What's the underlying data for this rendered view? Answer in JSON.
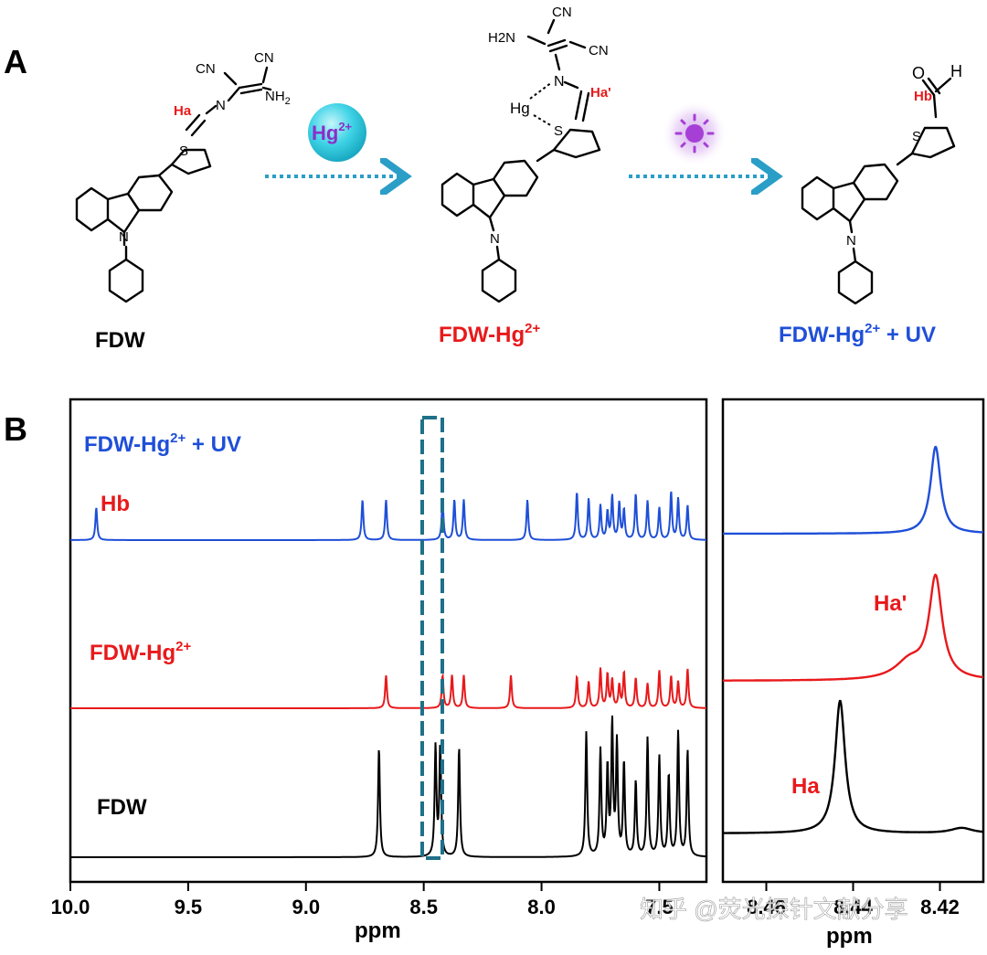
{
  "panel_a": {
    "label": "A",
    "compound1": {
      "name": "FDW",
      "atoms": {
        "ha": "Ha",
        "n": "N",
        "cn1": "CN",
        "cn2": "CN",
        "nh2": "NH",
        "nh2_sub": "2",
        "s": "S",
        "n_carbazole": "N"
      }
    },
    "reagent": {
      "label": "Hg",
      "charge": "2+"
    },
    "compound2": {
      "name": "FDW-Hg",
      "charge": "2+",
      "atoms": {
        "h2n": "H2N",
        "cn1": "CN",
        "cn2": "CN",
        "n": "N",
        "ha": "Ha'",
        "hg": "Hg",
        "s": "S",
        "n_carbazole": "N"
      }
    },
    "compound3": {
      "name": "FDW-Hg",
      "charge": "2+",
      "suffix": " + UV",
      "atoms": {
        "o": "O",
        "h": "H",
        "hb": "Hb",
        "s": "S",
        "n_carbazole": "N"
      }
    },
    "colors": {
      "black": "#000000",
      "red": "#e8191b",
      "blue": "#1f4fd8",
      "arrow": "#2a9ec7",
      "hg_sphere": "#3fd3e6",
      "uv": "#a63fd6"
    }
  },
  "panel_b": {
    "label": "B",
    "trace_labels": {
      "uv": {
        "text": "FDW-Hg",
        "charge": "2+",
        "suffix": " + UV"
      },
      "hb": "Hb",
      "hg": {
        "text": "FDW-Hg",
        "charge": "2+"
      },
      "fdw": "FDW"
    },
    "inset_labels": {
      "ha_prime": "Ha'",
      "ha": "Ha"
    },
    "x_axis": {
      "label": "ppm",
      "ticks": [
        "10.0",
        "9.5",
        "9.0",
        "8.5",
        "8.0",
        "7.5"
      ]
    },
    "inset_axis": {
      "label": "ppm",
      "ticks": [
        "8.46",
        "8.44",
        "8.42"
      ]
    },
    "watermark": "知乎 @荧光探针文献分享"
  },
  "chart_data": {
    "type": "line",
    "xlabel": "ppm",
    "xlim": [
      10.0,
      7.3
    ],
    "x_reversed": true,
    "series": [
      {
        "name": "FDW-Hg2+ + UV",
        "color": "#1f4fd8",
        "peaks_ppm": [
          9.89,
          8.76,
          8.66,
          8.42,
          8.37,
          8.33,
          8.06,
          7.85,
          7.8,
          7.75,
          7.72,
          7.7,
          7.67,
          7.65,
          7.6,
          7.55,
          7.5,
          7.45,
          7.42,
          7.38
        ]
      },
      {
        "name": "FDW-Hg2+",
        "color": "#e8191b",
        "peaks_ppm": [
          8.66,
          8.42,
          8.38,
          8.33,
          8.13,
          7.85,
          7.8,
          7.75,
          7.72,
          7.7,
          7.67,
          7.65,
          7.6,
          7.55,
          7.5,
          7.45,
          7.42,
          7.38
        ]
      },
      {
        "name": "FDW",
        "color": "#000000",
        "peaks_ppm": [
          8.69,
          8.45,
          8.43,
          8.35,
          7.81,
          7.75,
          7.72,
          7.7,
          7.68,
          7.65,
          7.6,
          7.55,
          7.5,
          7.46,
          7.42,
          7.38
        ]
      }
    ],
    "inset": {
      "xlabel": "ppm",
      "xlim": [
        8.47,
        8.41
      ],
      "x_ticks": [
        8.46,
        8.44,
        8.42
      ],
      "peaks_ppm": {
        "FDW-Hg2+ + UV": 8.421,
        "FDW-Hg2+": 8.421,
        "FDW": 8.443
      }
    },
    "highlight_region_ppm": [
      8.46,
      8.4
    ]
  }
}
